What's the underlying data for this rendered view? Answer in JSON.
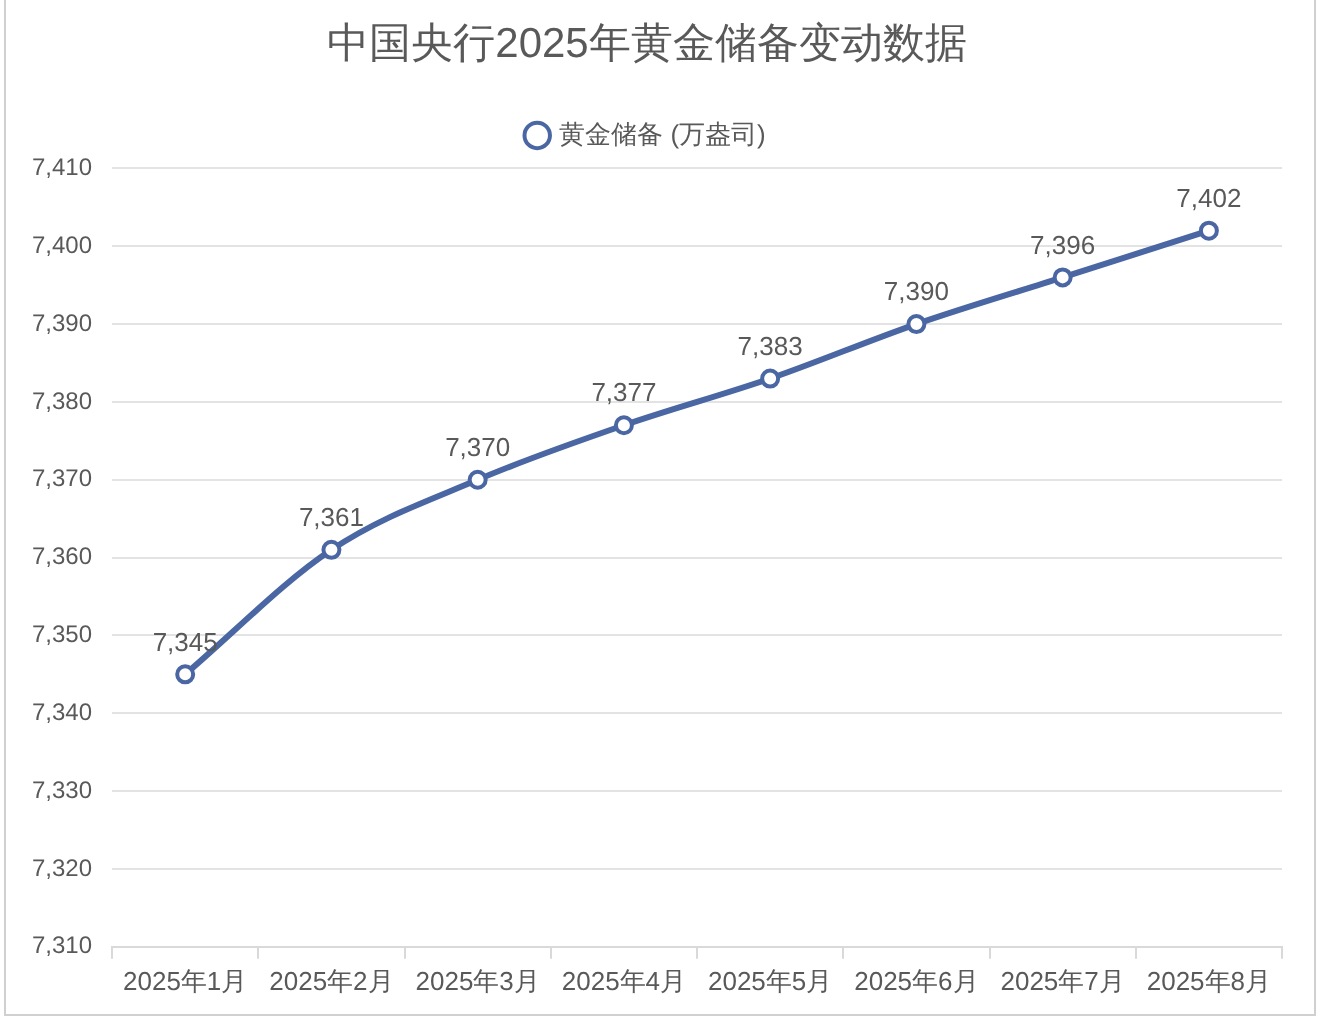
{
  "chart_data": {
    "type": "line",
    "title": "中国央行2025年黄金储备变动数据",
    "categories": [
      "2025年1月",
      "2025年2月",
      "2025年3月",
      "2025年4月",
      "2025年5月",
      "2025年6月",
      "2025年7月",
      "2025年8月"
    ],
    "series": [
      {
        "name": "黄金储备 (万盎司)",
        "color": "#4a67a3",
        "values": [
          7345,
          7361,
          7370,
          7377,
          7383,
          7390,
          7396,
          7402
        ],
        "value_labels": [
          "7,345",
          "7,361",
          "7,370",
          "7,377",
          "7,383",
          "7,390",
          "7,396",
          "7,402"
        ]
      }
    ],
    "ylim": [
      7310,
      7410
    ],
    "yticks": [
      {
        "value": 7310,
        "label": "7,310"
      },
      {
        "value": 7320,
        "label": "7,320"
      },
      {
        "value": 7330,
        "label": "7,330"
      },
      {
        "value": 7340,
        "label": "7,340"
      },
      {
        "value": 7350,
        "label": "7,350"
      },
      {
        "value": 7360,
        "label": "7,360"
      },
      {
        "value": 7370,
        "label": "7,370"
      },
      {
        "value": 7380,
        "label": "7,380"
      },
      {
        "value": 7390,
        "label": "7,390"
      },
      {
        "value": 7400,
        "label": "7,400"
      },
      {
        "value": 7410,
        "label": "7,410"
      }
    ],
    "grid": "y",
    "legend": "top",
    "marker": "circle",
    "line_style": "solid"
  }
}
